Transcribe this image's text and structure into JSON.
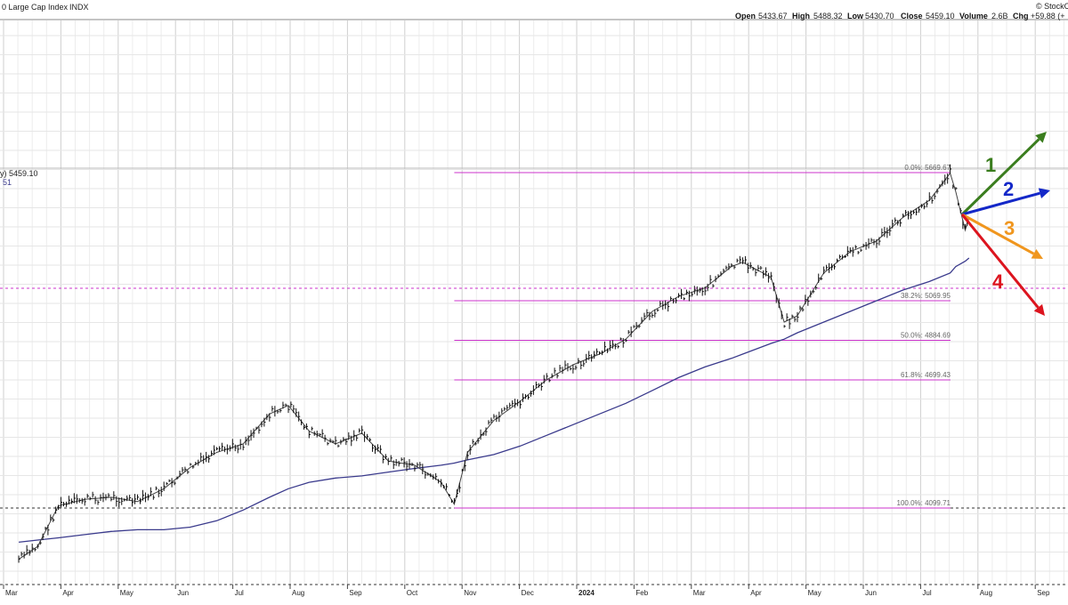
{
  "header": {
    "title": "0 Large Cap Index",
    "exchange": "INDX",
    "brand": "© StockC",
    "open_label": "Open",
    "open": "5433.67",
    "high_label": "High",
    "high": "5488.32",
    "low_label": "Low",
    "low": "5430.70",
    "close_label": "Close",
    "close": "5459.10",
    "volume_label": "Volume",
    "volume": "2.6B",
    "chg_label": "Chg",
    "chg": "+59.88 (+"
  },
  "legend": {
    "line1": "y) 5459.10",
    "line2": "51"
  },
  "chart_data": {
    "type": "line",
    "x": [
      "2023-03-10",
      "2023-03-20",
      "2023-03-31",
      "2023-04-14",
      "2023-04-28",
      "2023-05-12",
      "2023-05-26",
      "2023-06-09",
      "2023-06-23",
      "2023-07-07",
      "2023-07-21",
      "2023-07-31",
      "2023-08-11",
      "2023-08-25",
      "2023-09-08",
      "2023-09-22",
      "2023-10-06",
      "2023-10-20",
      "2023-10-27",
      "2023-11-03",
      "2023-11-17",
      "2023-12-01",
      "2023-12-15",
      "2023-12-29",
      "2024-01-12",
      "2024-01-26",
      "2024-02-09",
      "2024-02-23",
      "2024-03-08",
      "2024-03-22",
      "2024-03-28",
      "2024-04-12",
      "2024-04-19",
      "2024-04-26",
      "2024-05-10",
      "2024-05-24",
      "2024-06-07",
      "2024-06-21",
      "2024-07-05",
      "2024-07-16",
      "2024-07-19",
      "2024-07-24",
      "2024-07-26"
    ],
    "series": [
      {
        "values": [
          3860,
          3920,
          4110,
          4140,
          4150,
          4130,
          4190,
          4290,
          4360,
          4400,
          4540,
          4580,
          4460,
          4400,
          4450,
          4320,
          4300,
          4220,
          4117,
          4360,
          4510,
          4600,
          4700,
          4770,
          4820,
          4890,
          5020,
          5090,
          5130,
          5230,
          5250,
          5180,
          4970,
          5000,
          5200,
          5300,
          5350,
          5460,
          5540,
          5667,
          5580,
          5400,
          5459.1
        ]
      },
      {
        "values": [
          3940,
          3950,
          3960,
          3975,
          3990,
          3998,
          3998,
          4010,
          4040,
          4090,
          4150,
          4190,
          4220,
          4240,
          4250,
          4268,
          4285,
          4300,
          4310,
          4325,
          4350,
          4390,
          4440,
          4490,
          4540,
          4590,
          4650,
          4710,
          4760,
          4800,
          4820,
          4870,
          4890,
          4920,
          4970,
          5020,
          5070,
          5120,
          5160,
          5200,
          5230,
          5255,
          5270
        ]
      }
    ],
    "fibonacci": [
      {
        "label": "0.0%: 5669.67",
        "value": 5669.67
      },
      {
        "label": "38.2%: 5069.95",
        "value": 5069.95
      },
      {
        "label": "50.0%: 4884.69",
        "value": 4884.69
      },
      {
        "label": "61.8%: 4699.43",
        "value": 4699.43
      },
      {
        "label": "100.0%: 4099.71",
        "value": 4099.71
      }
    ],
    "scenario_arrows": [
      {
        "label": "1",
        "color": "#3a7d1e",
        "direction": "strong-up"
      },
      {
        "label": "2",
        "color": "#1428c8",
        "direction": "up"
      },
      {
        "label": "3",
        "color": "#f0961e",
        "direction": "down"
      },
      {
        "label": "4",
        "color": "#dc141e",
        "direction": "strong-down"
      }
    ],
    "xticks": [
      "Mar",
      "Apr",
      "May",
      "Jun",
      "Jul",
      "Aug",
      "Sep",
      "Oct",
      "Nov",
      "Dec",
      "2024",
      "Feb",
      "Mar",
      "Apr",
      "May",
      "Jun",
      "Jul",
      "Aug",
      "Sep"
    ],
    "ylim": [
      3760,
      5920
    ],
    "grid": true,
    "colors": {
      "price": "#111111",
      "ma": "#3a3a8c",
      "fib": "#cc33cc",
      "grid": "#d8d8d8"
    }
  }
}
